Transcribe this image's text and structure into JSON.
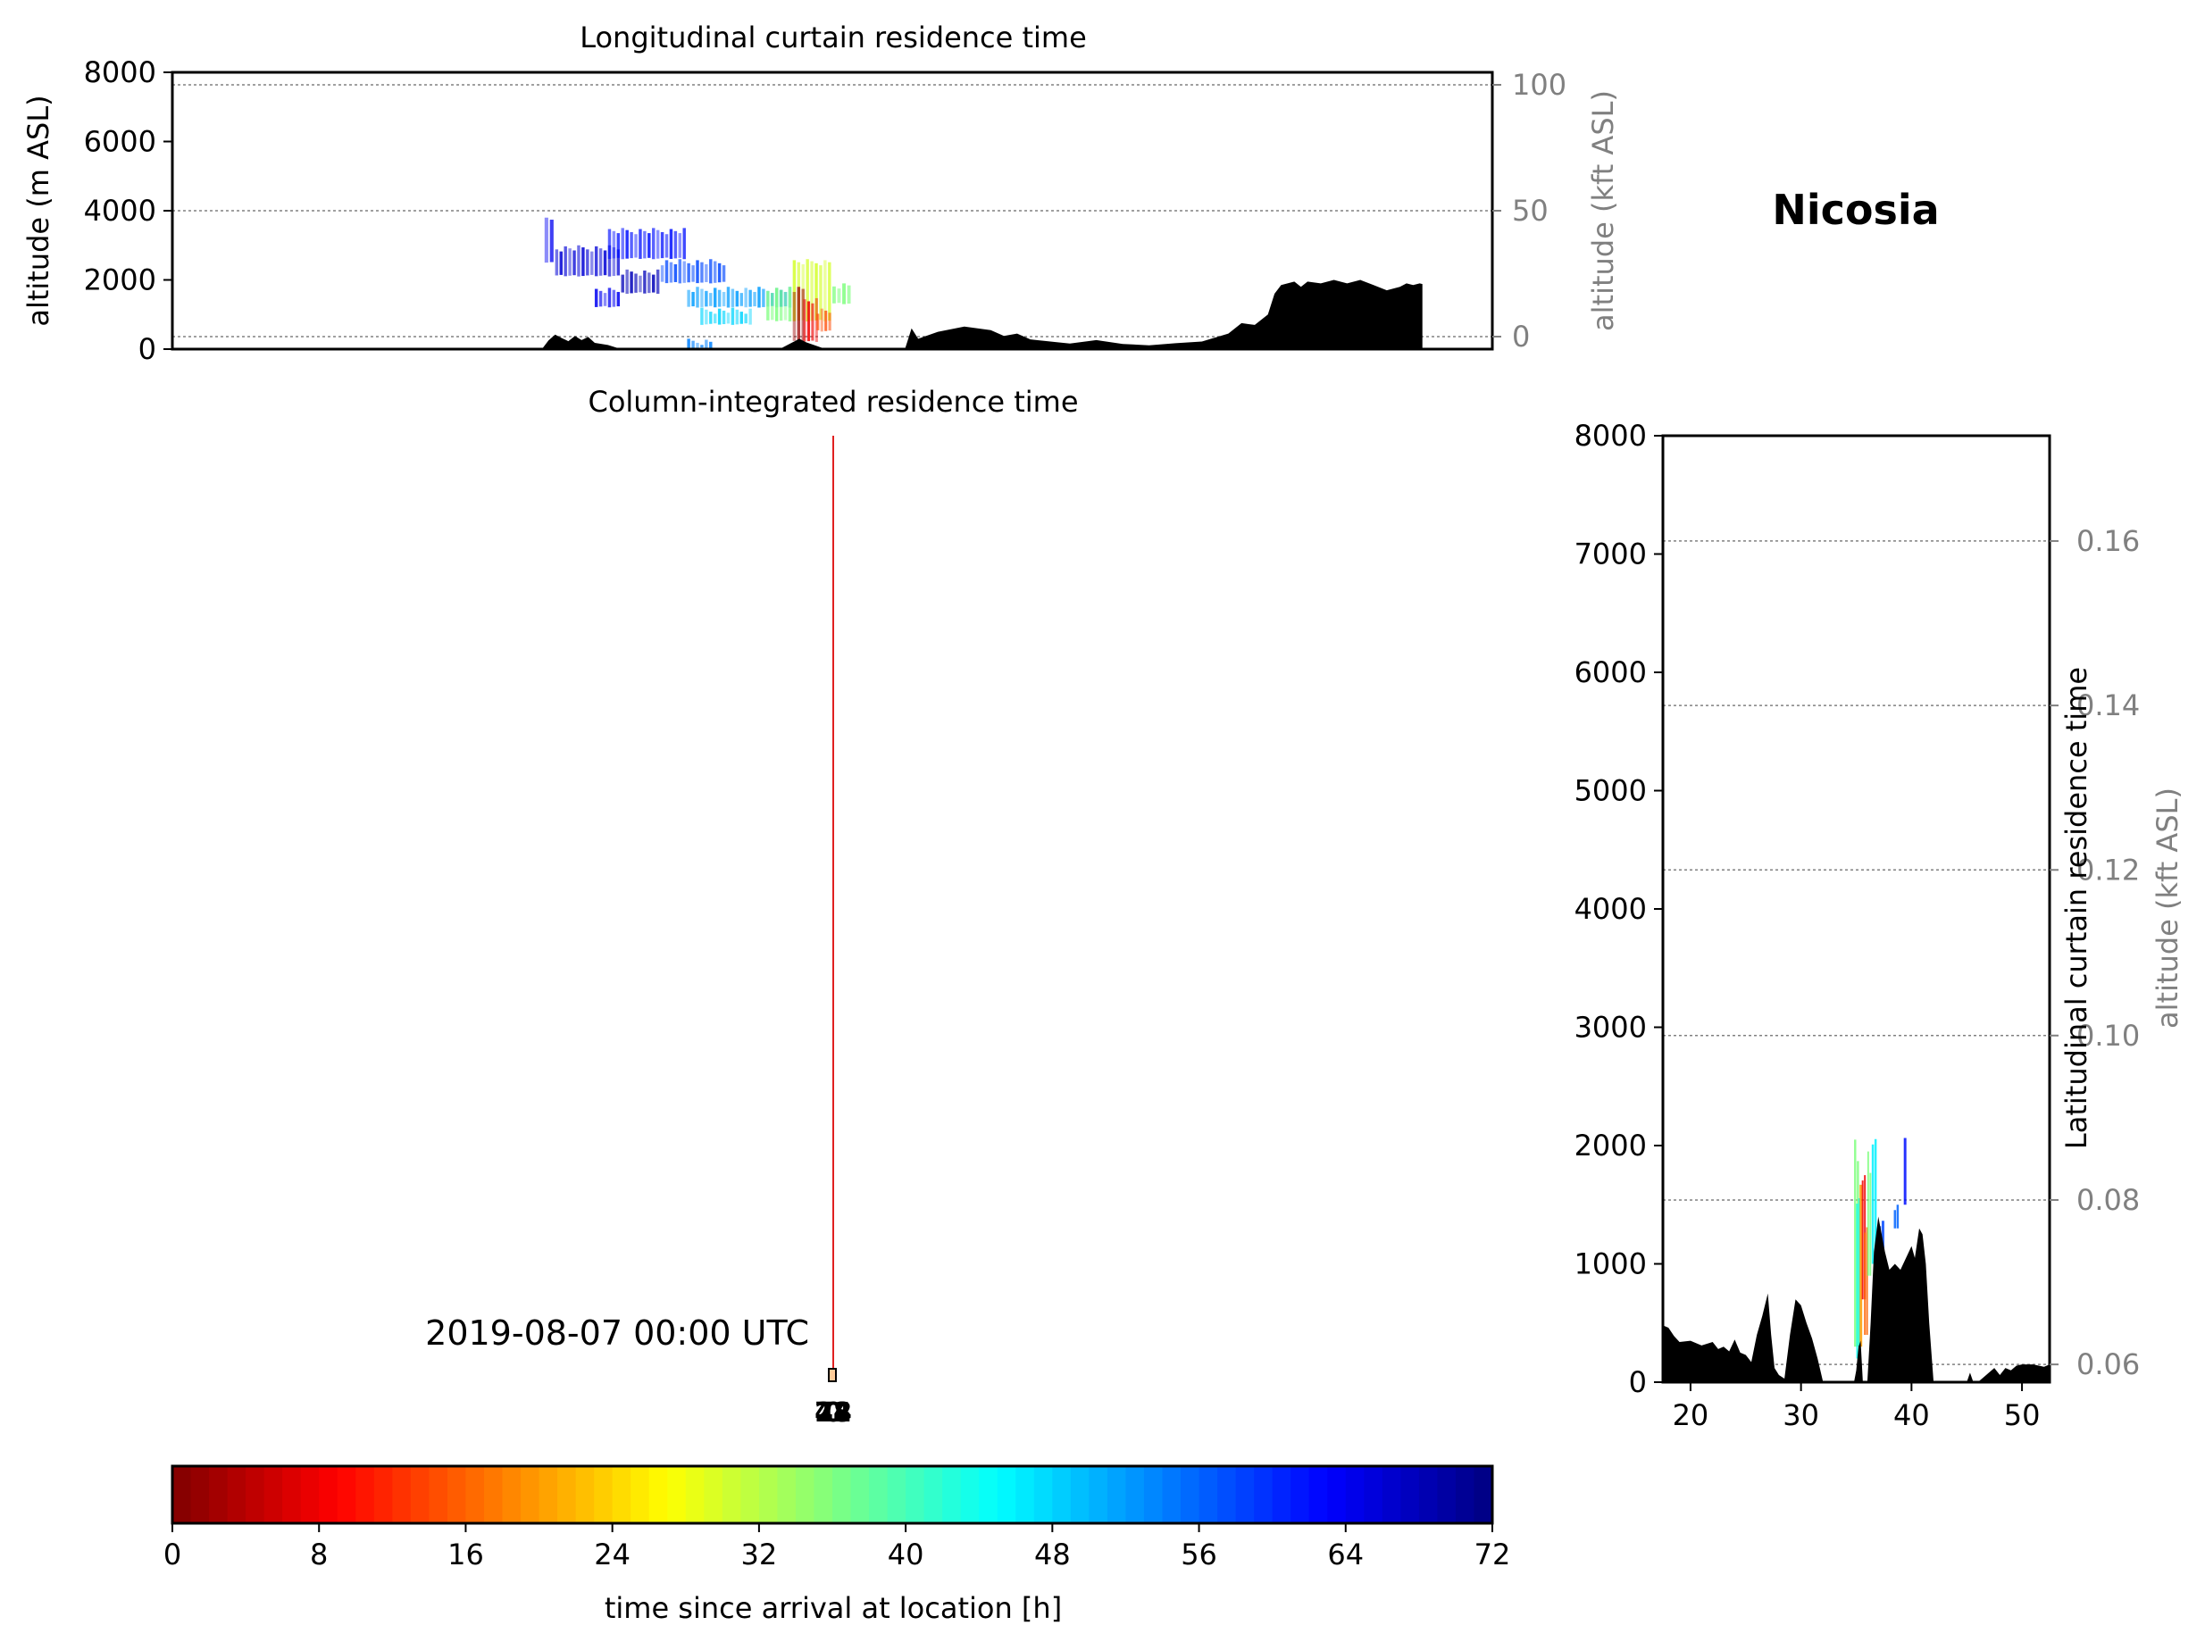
{
  "figure_title": "Nicosia",
  "timestamp": "2019-08-07 00:00 UTC",
  "colors": {
    "terrain": "#000000",
    "grid": "#808080",
    "secondary_axis": "#808080",
    "site_line": "#e02020"
  },
  "chart_data": [
    {
      "type": "heatmap",
      "panel": "longitudinal",
      "title": "Longitudinal curtain residence time",
      "xlabel": "",
      "ylabel": "altitude (m ASL)",
      "y2label": "altitude (kft ASL)",
      "ylim": [
        0,
        8000
      ],
      "y2lim": [
        0,
        100
      ],
      "yticks": [
        0,
        2000,
        4000,
        6000,
        8000
      ],
      "y2ticks": [
        0,
        50,
        100
      ],
      "grid": "y2 dotted",
      "terrain_profile": [
        [
          0.0,
          0
        ],
        [
          0.28,
          0
        ],
        [
          0.285,
          250
        ],
        [
          0.29,
          420
        ],
        [
          0.295,
          320
        ],
        [
          0.3,
          230
        ],
        [
          0.305,
          380
        ],
        [
          0.31,
          260
        ],
        [
          0.315,
          350
        ],
        [
          0.32,
          180
        ],
        [
          0.33,
          120
        ],
        [
          0.34,
          0
        ],
        [
          0.4,
          0
        ],
        [
          0.46,
          0
        ],
        [
          0.47,
          200
        ],
        [
          0.475,
          300
        ],
        [
          0.48,
          200
        ],
        [
          0.495,
          0
        ],
        [
          0.555,
          0
        ],
        [
          0.56,
          600
        ],
        [
          0.565,
          300
        ],
        [
          0.58,
          500
        ],
        [
          0.6,
          650
        ],
        [
          0.62,
          550
        ],
        [
          0.63,
          380
        ],
        [
          0.64,
          450
        ],
        [
          0.65,
          280
        ],
        [
          0.67,
          200
        ],
        [
          0.68,
          160
        ],
        [
          0.7,
          260
        ],
        [
          0.72,
          150
        ],
        [
          0.74,
          110
        ],
        [
          0.76,
          170
        ],
        [
          0.78,
          220
        ],
        [
          0.8,
          450
        ],
        [
          0.81,
          750
        ],
        [
          0.82,
          700
        ],
        [
          0.83,
          1000
        ],
        [
          0.835,
          1600
        ],
        [
          0.84,
          1850
        ],
        [
          0.85,
          1950
        ],
        [
          0.855,
          1800
        ],
        [
          0.86,
          1950
        ],
        [
          0.87,
          1900
        ],
        [
          0.88,
          2000
        ],
        [
          0.89,
          1900
        ],
        [
          0.9,
          2000
        ],
        [
          0.91,
          1850
        ],
        [
          0.92,
          1700
        ],
        [
          0.93,
          1800
        ],
        [
          0.935,
          1900
        ],
        [
          0.94,
          1850
        ],
        [
          0.945,
          1900
        ],
        [
          0.947,
          1880
        ],
        [
          0.947,
          0
        ]
      ],
      "residence_cells": [
        {
          "x0": 0.282,
          "x1": 0.29,
          "y0": 2500,
          "y1": 3800,
          "hours": 64
        },
        {
          "x0": 0.29,
          "x1": 0.34,
          "y0": 2100,
          "y1": 3000,
          "hours": 66
        },
        {
          "x0": 0.33,
          "x1": 0.39,
          "y0": 2600,
          "y1": 3500,
          "hours": 62
        },
        {
          "x0": 0.34,
          "x1": 0.37,
          "y0": 1600,
          "y1": 2300,
          "hours": 68
        },
        {
          "x0": 0.32,
          "x1": 0.34,
          "y0": 1200,
          "y1": 1800,
          "hours": 64
        },
        {
          "x0": 0.37,
          "x1": 0.42,
          "y0": 1900,
          "y1": 2600,
          "hours": 58
        },
        {
          "x0": 0.39,
          "x1": 0.47,
          "y0": 1200,
          "y1": 1800,
          "hours": 52
        },
        {
          "x0": 0.4,
          "x1": 0.44,
          "y0": 700,
          "y1": 1200,
          "hours": 48
        },
        {
          "x0": 0.45,
          "x1": 0.47,
          "y0": 800,
          "y1": 1800,
          "hours": 36
        },
        {
          "x0": 0.47,
          "x1": 0.5,
          "y0": 800,
          "y1": 2600,
          "hours": 30
        },
        {
          "x0": 0.47,
          "x1": 0.48,
          "y0": 200,
          "y1": 1800,
          "hours": 2
        },
        {
          "x0": 0.478,
          "x1": 0.49,
          "y0": 200,
          "y1": 1500,
          "hours": 8
        },
        {
          "x0": 0.488,
          "x1": 0.5,
          "y0": 500,
          "y1": 1200,
          "hours": 14
        },
        {
          "x0": 0.5,
          "x1": 0.515,
          "y0": 1300,
          "y1": 1900,
          "hours": 36
        },
        {
          "x0": 0.39,
          "x1": 0.41,
          "y0": 0,
          "y1": 300,
          "hours": 54
        }
      ]
    },
    {
      "type": "line",
      "panel": "column",
      "title": "Column-integrated residence time",
      "xlabel": "",
      "ylabel": "",
      "site_line": "vertical red line",
      "marker_label": "2019-08-07 00:00 UTC",
      "overlapping_labels": [
        "72",
        "48",
        "24",
        "0"
      ]
    },
    {
      "type": "heatmap",
      "panel": "latitudinal",
      "title": "Latitudinal curtain residence time",
      "xlabel": "",
      "ylabel": "",
      "y2label": "altitude (kft ASL)",
      "xlim": [
        17.5,
        52.5
      ],
      "xticks": [
        20,
        30,
        40,
        50
      ],
      "ylim": [
        0,
        8000
      ],
      "yticks": [
        0,
        1000,
        2000,
        3000,
        4000,
        5000,
        6000,
        7000,
        8000
      ],
      "y2ticks": [
        0.06,
        0.08,
        0.1,
        0.12,
        0.14,
        0.16
      ],
      "y2_positions_m": [
        150,
        1540,
        2930,
        4330,
        5720,
        7110
      ],
      "grid": "y2 dotted",
      "terrain_profile": [
        [
          17.5,
          0
        ],
        [
          17.5,
          480
        ],
        [
          18.0,
          460
        ],
        [
          18.5,
          390
        ],
        [
          19.0,
          340
        ],
        [
          20.0,
          350
        ],
        [
          21.0,
          310
        ],
        [
          22.0,
          340
        ],
        [
          22.5,
          280
        ],
        [
          23.0,
          300
        ],
        [
          23.5,
          260
        ],
        [
          24.0,
          360
        ],
        [
          24.5,
          250
        ],
        [
          25.0,
          230
        ],
        [
          25.5,
          170
        ],
        [
          26.0,
          400
        ],
        [
          26.5,
          560
        ],
        [
          27.0,
          750
        ],
        [
          27.3,
          400
        ],
        [
          27.6,
          120
        ],
        [
          28.0,
          60
        ],
        [
          28.5,
          30
        ],
        [
          29.0,
          400
        ],
        [
          29.5,
          700
        ],
        [
          30.0,
          650
        ],
        [
          30.5,
          500
        ],
        [
          31.0,
          370
        ],
        [
          31.5,
          200
        ],
        [
          32.0,
          0
        ],
        [
          34.8,
          0
        ],
        [
          35.0,
          100
        ],
        [
          35.2,
          300
        ],
        [
          35.4,
          350
        ],
        [
          35.6,
          0
        ],
        [
          36.0,
          0
        ],
        [
          36.3,
          500
        ],
        [
          36.6,
          1100
        ],
        [
          37.0,
          1400
        ],
        [
          37.3,
          1250
        ],
        [
          37.6,
          1100
        ],
        [
          38.0,
          950
        ],
        [
          38.5,
          1000
        ],
        [
          39.0,
          950
        ],
        [
          39.5,
          1050
        ],
        [
          40.0,
          1150
        ],
        [
          40.3,
          1050
        ],
        [
          40.7,
          1300
        ],
        [
          41.0,
          1250
        ],
        [
          41.3,
          1000
        ],
        [
          41.6,
          500
        ],
        [
          42.0,
          0
        ],
        [
          45.0,
          0
        ],
        [
          45.3,
          80
        ],
        [
          45.6,
          0
        ],
        [
          46.0,
          0
        ],
        [
          46.5,
          40
        ],
        [
          47.0,
          80
        ],
        [
          47.5,
          120
        ],
        [
          48.0,
          60
        ],
        [
          48.5,
          120
        ],
        [
          49.0,
          100
        ],
        [
          49.5,
          140
        ],
        [
          50.0,
          150
        ],
        [
          51.0,
          150
        ],
        [
          52.0,
          130
        ],
        [
          52.5,
          150
        ],
        [
          52.5,
          0
        ]
      ],
      "residence_cells": [
        {
          "x0": 34.8,
          "x1": 35.3,
          "y0": 300,
          "y1": 2050,
          "hours": 36
        },
        {
          "x0": 35.0,
          "x1": 35.4,
          "y0": 200,
          "y1": 1600,
          "hours": 44
        },
        {
          "x0": 35.3,
          "x1": 35.6,
          "y0": 300,
          "y1": 1850,
          "hours": 20
        },
        {
          "x0": 35.5,
          "x1": 35.9,
          "y0": 700,
          "y1": 1750,
          "hours": 8
        },
        {
          "x0": 35.7,
          "x1": 36.1,
          "y0": 400,
          "y1": 1400,
          "hours": 16
        },
        {
          "x0": 36.0,
          "x1": 36.4,
          "y0": 900,
          "y1": 1950,
          "hours": 36
        },
        {
          "x0": 36.4,
          "x1": 36.9,
          "y0": 1000,
          "y1": 2100,
          "hours": 46
        },
        {
          "x0": 37.0,
          "x1": 37.6,
          "y0": 1000,
          "y1": 1500,
          "hours": 58
        },
        {
          "x0": 38.4,
          "x1": 38.9,
          "y0": 1300,
          "y1": 1500,
          "hours": 56
        },
        {
          "x0": 39.3,
          "x1": 39.6,
          "y0": 1500,
          "y1": 2200,
          "hours": 62
        }
      ]
    }
  ],
  "colorbar": {
    "label": "time since arrival at location [h]",
    "range": [
      0,
      72
    ],
    "ticks": [
      0,
      8,
      16,
      24,
      32,
      40,
      48,
      56,
      64,
      72
    ],
    "levels": 72,
    "colormap": "jet_r"
  }
}
